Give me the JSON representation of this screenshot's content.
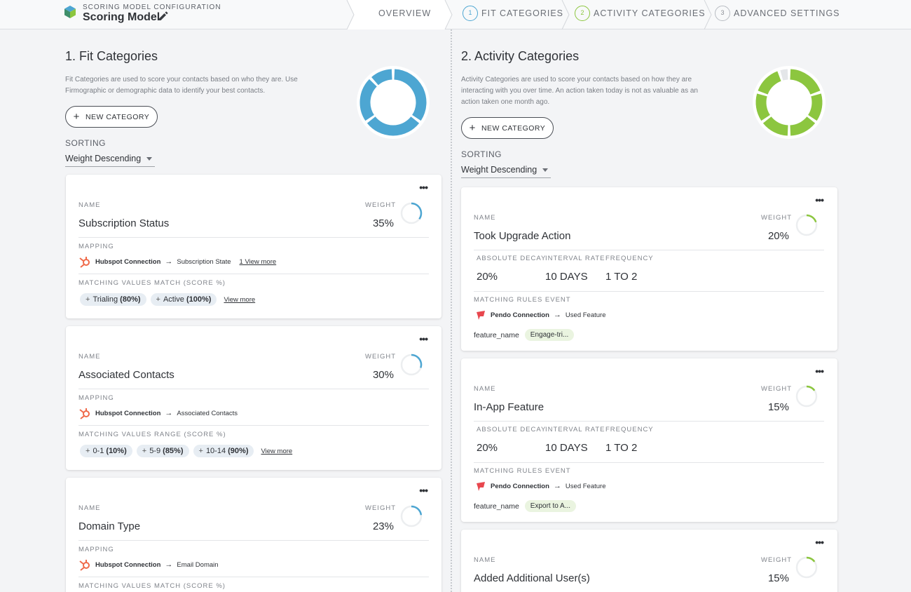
{
  "header": {
    "config_label": "SCORING MODEL CONFIGURATION",
    "title": "Scoring Model",
    "steps": [
      {
        "label": "OVERVIEW",
        "num": ""
      },
      {
        "label": "FIT CATEGORIES",
        "num": "1"
      },
      {
        "label": "ACTIVITY CATEGORIES",
        "num": "2"
      },
      {
        "label": "ADVANCED SETTINGS",
        "num": "3"
      }
    ]
  },
  "colors": {
    "fit": "#4da6d2",
    "activity": "#8cc63f",
    "pendo": "#e8474e",
    "hubspot": "#ef6a4a"
  },
  "fit": {
    "title": "1. Fit Categories",
    "desc_line1": "Fit Categories are used to score your contacts based on who they are. Use",
    "desc_line2": "Firmographic or demographic data to identify your best contacts.",
    "new_button": "NEW CATEGORY",
    "sorting_label": "SORTING",
    "sorting_value": "Weight Descending",
    "cards": [
      {
        "name_label": "NAME",
        "name": "Subscription Status",
        "weight_label": "WEIGHT",
        "weight": "35%",
        "weight_value": 35,
        "mapping_label": "MAPPING",
        "connection": "Hubspot Connection",
        "field": "Subscription State",
        "more": "1 View more",
        "match_label": "MATCHING VALUES MATCH (SCORE %)",
        "chips": [
          {
            "text": "Trialing",
            "score": "(80%)"
          },
          {
            "text": "Active",
            "score": "(100%)"
          }
        ],
        "chips_more": "View more"
      },
      {
        "name_label": "NAME",
        "name": "Associated Contacts",
        "weight_label": "WEIGHT",
        "weight": "30%",
        "weight_value": 30,
        "mapping_label": "MAPPING",
        "connection": "Hubspot Connection",
        "field": "Associated Contacts",
        "more": "",
        "match_label": "MATCHING VALUES RANGE (SCORE %)",
        "chips": [
          {
            "text": "0-1",
            "score": "(10%)"
          },
          {
            "text": "5-9",
            "score": "(85%)"
          },
          {
            "text": "10-14",
            "score": "(90%)"
          }
        ],
        "chips_more": "View more"
      },
      {
        "name_label": "NAME",
        "name": "Domain Type",
        "weight_label": "WEIGHT",
        "weight": "23%",
        "weight_value": 23,
        "mapping_label": "MAPPING",
        "connection": "Hubspot Connection",
        "field": "Email Domain",
        "more": "",
        "match_label": "MATCHING VALUES MATCH (SCORE %)",
        "chips": [],
        "chips_more": ""
      }
    ]
  },
  "activity": {
    "title": "2. Activity Categories",
    "desc_line1": "Activity Categories are used to score your contacts based on how they are",
    "desc_line2": "interacting with you over time. An action taken today is not as valuable as an",
    "desc_line3": "action taken one month ago.",
    "new_button": "NEW CATEGORY",
    "sorting_label": "SORTING",
    "sorting_value": "Weight Descending",
    "cards": [
      {
        "name_label": "NAME",
        "name": "Took Upgrade Action",
        "weight_label": "WEIGHT",
        "weight": "20%",
        "weight_value": 20,
        "decay_label": "ABSOLUTE DECAY",
        "decay": "20%",
        "interval_label": "INTERVAL RATE",
        "interval": "10 DAYS",
        "freq_label": "FREQUENCY",
        "freq": "1 TO 2",
        "rules_label": "MATCHING RULES EVENT",
        "connection": "Pendo Connection",
        "event": "Used Feature",
        "feature_key": "feature_name",
        "feature_value": "Engage-tri..."
      },
      {
        "name_label": "NAME",
        "name": "In-App Feature",
        "weight_label": "WEIGHT",
        "weight": "15%",
        "weight_value": 15,
        "decay_label": "ABSOLUTE DECAY",
        "decay": "20%",
        "interval_label": "INTERVAL RATE",
        "interval": "10 DAYS",
        "freq_label": "FREQUENCY",
        "freq": "1 TO 2",
        "rules_label": "MATCHING RULES EVENT",
        "connection": "Pendo Connection",
        "event": "Used Feature",
        "feature_key": "feature_name",
        "feature_value": "Export to A..."
      },
      {
        "name_label": "NAME",
        "name": "Added Additional User(s)",
        "weight_label": "WEIGHT",
        "weight": "15%",
        "weight_value": 15
      }
    ]
  }
}
